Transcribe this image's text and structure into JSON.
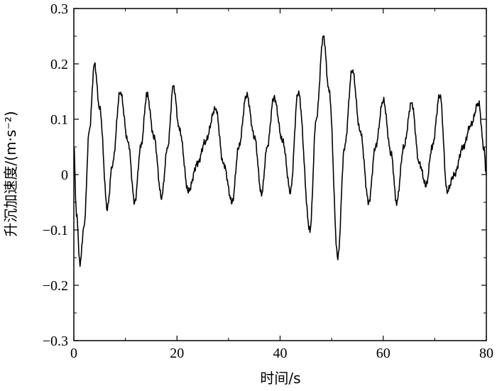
{
  "chart_data": {
    "type": "line",
    "title": "",
    "xlabel": "时间/s",
    "ylabel": "升沉加速度/(m·s⁻²)",
    "xlim": [
      0,
      80
    ],
    "ylim": [
      -0.3,
      0.3
    ],
    "x_ticks": [
      0,
      20,
      40,
      60,
      80
    ],
    "x_tick_labels": [
      "0",
      "20",
      "40",
      "60",
      "80"
    ],
    "y_ticks": [
      -0.3,
      -0.2,
      -0.1,
      0,
      0.1,
      0.2,
      0.3
    ],
    "y_tick_labels": [
      "−0.3",
      "−0.2",
      "−0.1",
      "0",
      "0.1",
      "0.2",
      "0.3"
    ],
    "grid": false,
    "series": [
      {
        "x": [
          0,
          0.5,
          1.2,
          2,
          3,
          4,
          5,
          6.5,
          7.5,
          9,
          10.5,
          11.8,
          13,
          14.2,
          15.5,
          17,
          18.2,
          19.3,
          20.5,
          22.2,
          24,
          25.5,
          27.5,
          29,
          30.7,
          32,
          33.5,
          35,
          36.4,
          37.5,
          38.8,
          40.5,
          42,
          43.5,
          45.8,
          47,
          48.4,
          49.5,
          51.2,
          52.5,
          54,
          55.5,
          57.2,
          58.5,
          60,
          61.5,
          62.6,
          64,
          65.5,
          67,
          68.3,
          69.5,
          71,
          72.4,
          73.8,
          75.5,
          77,
          78.5,
          79.5,
          80
        ],
        "y": [
          0.05,
          -0.07,
          -0.16,
          -0.09,
          0.08,
          0.2,
          0.12,
          -0.06,
          0.02,
          0.15,
          0.06,
          -0.05,
          0.05,
          0.145,
          0.07,
          -0.04,
          0.05,
          0.16,
          0.08,
          -0.03,
          0.02,
          0.06,
          0.12,
          0.02,
          -0.05,
          0.05,
          0.145,
          0.07,
          -0.035,
          0.05,
          0.14,
          0.06,
          -0.03,
          0.15,
          -0.1,
          0.1,
          0.25,
          0.15,
          -0.15,
          0.05,
          0.19,
          0.08,
          -0.05,
          0.05,
          0.135,
          0.04,
          -0.05,
          0.05,
          0.13,
          0.02,
          -0.02,
          0.05,
          0.145,
          -0.03,
          0.0,
          0.05,
          0.09,
          0.13,
          0.05,
          0.0
        ]
      }
    ]
  }
}
